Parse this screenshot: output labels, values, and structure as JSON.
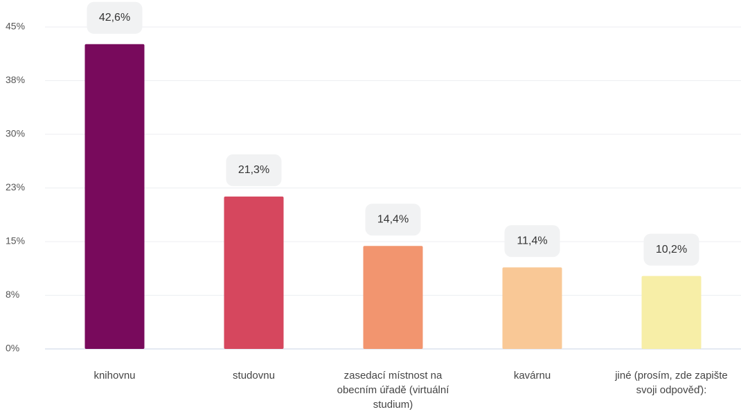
{
  "chart_data": {
    "type": "bar",
    "categories": [
      "knihovnu",
      "studovnu",
      "zasedací místnost na obecním úřadě (virtuální studium)",
      "kavárnu",
      "jiné (prosím, zde zapište svoji odpověď):"
    ],
    "values": [
      42.6,
      21.3,
      14.4,
      11.4,
      10.2
    ],
    "value_labels": [
      "42,6%",
      "21,3%",
      "14,4%",
      "11,4%",
      "10,2%"
    ],
    "colors": [
      "#780a5c",
      "#d6475e",
      "#f2956f",
      "#f9c896",
      "#f7eea7"
    ],
    "ylim": [
      0,
      45
    ],
    "yticks": [
      {
        "value": 0,
        "label": "0%"
      },
      {
        "value": 7.5,
        "label": "8%"
      },
      {
        "value": 15,
        "label": "15%"
      },
      {
        "value": 22.5,
        "label": "23%"
      },
      {
        "value": 30,
        "label": "30%"
      },
      {
        "value": 37.5,
        "label": "38%"
      },
      {
        "value": 45,
        "label": "45%"
      }
    ],
    "grid": true
  }
}
